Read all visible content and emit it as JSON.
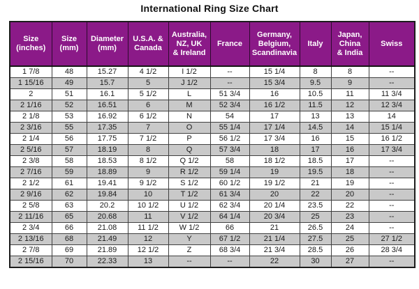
{
  "title": "International Ring Size Chart",
  "colors": {
    "header_bg": "#8B1A88",
    "header_text": "#FFFFFF",
    "row_alt_bg": "#C9C9C9",
    "grid_line": "#3F3F3F",
    "title_text": "#111111"
  },
  "chart_data": {
    "type": "table",
    "title": "International Ring Size Chart",
    "columns": [
      "Size\n(inches)",
      "Size\n(mm)",
      "Diameter\n(mm)",
      "U.S.A. &\nCanada",
      "Australia,\nNZ, UK\n& Ireland",
      "France",
      "Germany,\nBelgium,\nScandinavia",
      "Italy",
      "Japan,\nChina\n& India",
      "Swiss"
    ],
    "rows": [
      [
        "1 7/8",
        "48",
        "15.27",
        "4 1/2",
        "I 1/2",
        "--",
        "15 1/4",
        "8",
        "8",
        "--"
      ],
      [
        "1 15/16",
        "49",
        "15.7",
        "5",
        "J 1/2",
        "--",
        "15 3/4",
        "9.5",
        "9",
        "--"
      ],
      [
        "2",
        "51",
        "16.1",
        "5 1/2",
        "L",
        "51 3/4",
        "16",
        "10.5",
        "11",
        "11 3/4"
      ],
      [
        "2 1/16",
        "52",
        "16.51",
        "6",
        "M",
        "52 3/4",
        "16 1/2",
        "11.5",
        "12",
        "12 3/4"
      ],
      [
        "2 1/8",
        "53",
        "16.92",
        "6 1/2",
        "N",
        "54",
        "17",
        "13",
        "13",
        "14"
      ],
      [
        "2 3/16",
        "55",
        "17.35",
        "7",
        "O",
        "55 1/4",
        "17 1/4",
        "14.5",
        "14",
        "15 1/4"
      ],
      [
        "2 1/4",
        "56",
        "17.75",
        "7 1/2",
        "P",
        "56 1/2",
        "17 3/4",
        "16",
        "15",
        "16 1/2"
      ],
      [
        "2 5/16",
        "57",
        "18.19",
        "8",
        "Q",
        "57 3/4",
        "18",
        "17",
        "16",
        "17 3/4"
      ],
      [
        "2 3/8",
        "58",
        "18.53",
        "8 1/2",
        "Q 1/2",
        "58",
        "18 1/2",
        "18.5",
        "17",
        "--"
      ],
      [
        "2 7/16",
        "59",
        "18.89",
        "9",
        "R 1/2",
        "59 1/4",
        "19",
        "19.5",
        "18",
        "--"
      ],
      [
        "2 1/2",
        "61",
        "19.41",
        "9 1/2",
        "S 1/2",
        "60 1/2",
        "19 1/2",
        "21",
        "19",
        "--"
      ],
      [
        "2 9/16",
        "62",
        "19.84",
        "10",
        "T 1/2",
        "61 3/4",
        "20",
        "22",
        "20",
        "--"
      ],
      [
        "2 5/8",
        "63",
        "20.2",
        "10 1/2",
        "U 1/2",
        "62 3/4",
        "20 1/4",
        "23.5",
        "22",
        "--"
      ],
      [
        "2 11/16",
        "65",
        "20.68",
        "11",
        "V 1/2",
        "64 1/4",
        "20 3/4",
        "25",
        "23",
        "--"
      ],
      [
        "2 3/4",
        "66",
        "21.08",
        "11 1/2",
        "W 1/2",
        "66",
        "21",
        "26.5",
        "24",
        "--"
      ],
      [
        "2 13/16",
        "68",
        "21.49",
        "12",
        "Y",
        "67 1/2",
        "21 1/4",
        "27.5",
        "25",
        "27 1/2"
      ],
      [
        "2 7/8",
        "69",
        "21.89",
        "12 1/2",
        "Z",
        "68 3/4",
        "21 3/4",
        "28.5",
        "26",
        "28 3/4"
      ],
      [
        "2 15/16",
        "70",
        "22.33",
        "13",
        "--",
        "--",
        "22",
        "30",
        "27",
        "--"
      ]
    ]
  }
}
